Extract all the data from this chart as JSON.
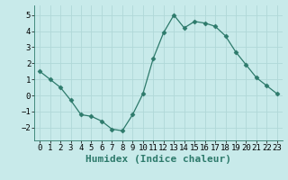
{
  "x": [
    0,
    1,
    2,
    3,
    4,
    5,
    6,
    7,
    8,
    9,
    10,
    11,
    12,
    13,
    14,
    15,
    16,
    17,
    18,
    19,
    20,
    21,
    22,
    23
  ],
  "y": [
    1.5,
    1.0,
    0.5,
    -0.3,
    -1.2,
    -1.3,
    -1.6,
    -2.1,
    -2.2,
    -1.2,
    0.1,
    2.3,
    3.9,
    5.0,
    4.2,
    4.6,
    4.5,
    4.3,
    3.7,
    2.7,
    1.9,
    1.1,
    0.6,
    0.1
  ],
  "xlabel": "Humidex (Indice chaleur)",
  "ylim": [
    -2.8,
    5.6
  ],
  "xlim": [
    -0.5,
    23.5
  ],
  "yticks": [
    -2,
    -1,
    0,
    1,
    2,
    3,
    4,
    5
  ],
  "xticks": [
    0,
    1,
    2,
    3,
    4,
    5,
    6,
    7,
    8,
    9,
    10,
    11,
    12,
    13,
    14,
    15,
    16,
    17,
    18,
    19,
    20,
    21,
    22,
    23
  ],
  "line_color": "#2d7a6b",
  "marker": "D",
  "marker_size": 2.5,
  "bg_color": "#c8eaea",
  "grid_color": "#b0d8d8",
  "xlabel_fontsize": 8,
  "tick_fontsize": 6.5
}
